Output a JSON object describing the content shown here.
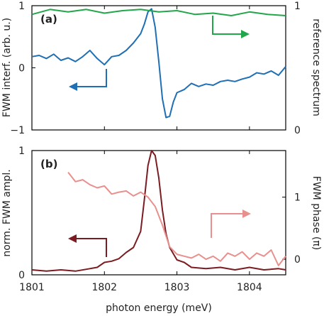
{
  "colors": {
    "interf": "#1f6fb5",
    "reference": "#22a64a",
    "ampl": "#7a1c22",
    "phase": "#e8908e"
  },
  "chart_data": [
    {
      "panel": "(a)",
      "type": "line",
      "xlim": [
        1801,
        1804.5
      ],
      "ylim_left": [
        -1,
        1
      ],
      "ylim_right": [
        0,
        1
      ],
      "ylabel_left": "FWM interf. (arb. u.)",
      "ylabel_right": "reference spectrum",
      "yticks_left": [
        "-1",
        "0",
        "1"
      ],
      "yticks_right": [
        "0",
        "1"
      ],
      "series": [
        {
          "axis": "left",
          "color_key": "interf",
          "x": [
            1801.0,
            1801.1,
            1801.2,
            1801.3,
            1801.4,
            1801.5,
            1801.6,
            1801.7,
            1801.8,
            1801.9,
            1802.0,
            1802.1,
            1802.2,
            1802.3,
            1802.4,
            1802.5,
            1802.55,
            1802.6,
            1802.65,
            1802.7,
            1802.75,
            1802.8,
            1802.85,
            1802.9,
            1802.95,
            1803.0,
            1803.1,
            1803.2,
            1803.3,
            1803.4,
            1803.5,
            1803.6,
            1803.7,
            1803.8,
            1803.9,
            1804.0,
            1804.1,
            1804.2,
            1804.3,
            1804.4,
            1804.5
          ],
          "y": [
            0.18,
            0.2,
            0.15,
            0.22,
            0.12,
            0.16,
            0.1,
            0.18,
            0.28,
            0.15,
            0.05,
            0.18,
            0.2,
            0.28,
            0.4,
            0.55,
            0.7,
            0.9,
            0.95,
            0.65,
            0.1,
            -0.5,
            -0.8,
            -0.78,
            -0.55,
            -0.4,
            -0.35,
            -0.25,
            -0.3,
            -0.26,
            -0.28,
            -0.22,
            -0.2,
            -0.22,
            -0.18,
            -0.15,
            -0.08,
            -0.1,
            -0.05,
            -0.12,
            0.02
          ]
        },
        {
          "axis": "right",
          "color_key": "reference",
          "x": [
            1801.0,
            1801.25,
            1801.5,
            1801.75,
            1802.0,
            1802.25,
            1802.5,
            1802.75,
            1803.0,
            1803.25,
            1803.5,
            1803.75,
            1804.0,
            1804.25,
            1804.5
          ],
          "y": [
            0.93,
            0.97,
            0.95,
            0.97,
            0.94,
            0.96,
            0.97,
            0.95,
            0.96,
            0.93,
            0.94,
            0.92,
            0.95,
            0.93,
            0.92
          ]
        }
      ],
      "arrows": [
        {
          "direction": "left",
          "color_key": "interf"
        },
        {
          "direction": "right",
          "color_key": "reference"
        }
      ]
    },
    {
      "panel": "(b)",
      "type": "line",
      "xlim": [
        1801,
        1804.5
      ],
      "ylim_left": [
        0,
        1
      ],
      "ylim_right": [
        -0.25,
        1.75
      ],
      "ylabel_left": "norm. FWM ampl.",
      "ylabel_right": "FWM phase (π)",
      "yticks_left": [
        "0",
        "1"
      ],
      "yticks_right": [
        "0",
        "1"
      ],
      "xlabel": "photon energy (meV)",
      "xticks": [
        "1801",
        "1802",
        "1803",
        "1804"
      ],
      "series": [
        {
          "axis": "left",
          "color_key": "ampl",
          "x": [
            1801.0,
            1801.2,
            1801.4,
            1801.6,
            1801.8,
            1801.9,
            1802.0,
            1802.1,
            1802.2,
            1802.3,
            1802.4,
            1802.5,
            1802.55,
            1802.6,
            1802.65,
            1802.7,
            1802.75,
            1802.8,
            1802.85,
            1802.9,
            1803.0,
            1803.1,
            1803.2,
            1803.4,
            1803.6,
            1803.8,
            1804.0,
            1804.2,
            1804.4,
            1804.5
          ],
          "y": [
            0.04,
            0.03,
            0.04,
            0.03,
            0.05,
            0.06,
            0.1,
            0.11,
            0.13,
            0.18,
            0.22,
            0.35,
            0.6,
            0.88,
            1.0,
            0.96,
            0.78,
            0.52,
            0.33,
            0.22,
            0.12,
            0.1,
            0.06,
            0.05,
            0.06,
            0.04,
            0.06,
            0.04,
            0.05,
            0.04
          ]
        },
        {
          "axis": "right",
          "color_key": "phase",
          "x": [
            1801.5,
            1801.6,
            1801.7,
            1801.8,
            1801.9,
            1802.0,
            1802.1,
            1802.2,
            1802.3,
            1802.4,
            1802.5,
            1802.6,
            1802.7,
            1802.8,
            1802.9,
            1803.0,
            1803.1,
            1803.2,
            1803.3,
            1803.4,
            1803.5,
            1803.6,
            1803.7,
            1803.8,
            1803.9,
            1804.0,
            1804.1,
            1804.2,
            1804.3,
            1804.4,
            1804.5
          ],
          "y": [
            1.4,
            1.25,
            1.28,
            1.2,
            1.15,
            1.18,
            1.05,
            1.08,
            1.1,
            1.02,
            1.08,
            1.0,
            0.85,
            0.55,
            0.2,
            0.08,
            0.05,
            0.02,
            0.08,
            0.0,
            0.05,
            -0.03,
            0.1,
            0.05,
            0.12,
            0.0,
            0.1,
            0.05,
            0.15,
            -0.1,
            0.05
          ]
        }
      ],
      "arrows": [
        {
          "direction": "left",
          "color_key": "ampl"
        },
        {
          "direction": "right",
          "color_key": "phase"
        }
      ]
    }
  ]
}
